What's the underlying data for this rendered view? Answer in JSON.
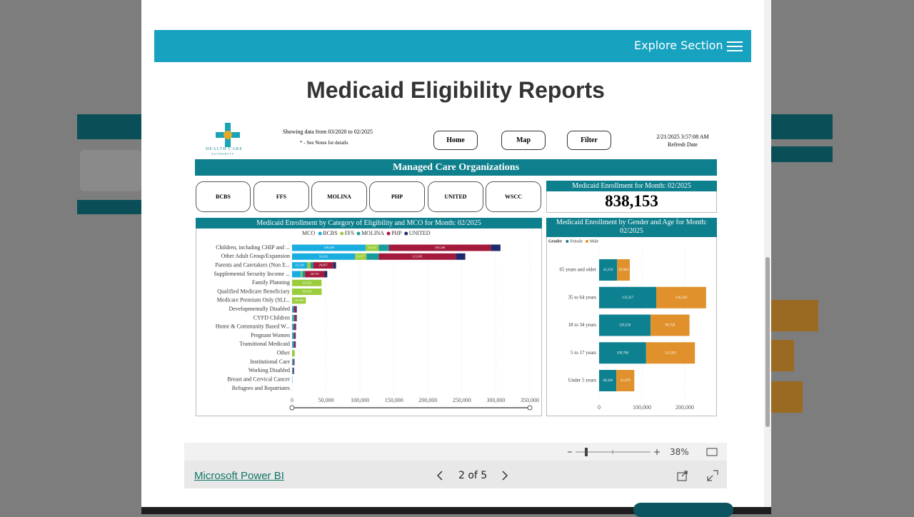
{
  "browser": {
    "explore": "Explore Section",
    "page_title": "Medicaid Eligibility Reports"
  },
  "report": {
    "logo_line1": "HEALTH CARE",
    "logo_line2": "AUTHORITY",
    "data_range": "Showing data from 03/2020 to 02/2025",
    "notes": "* - See Notes for details",
    "nav": [
      "Home",
      "Map",
      "Filter"
    ],
    "refresh_time": "2/21/2025 3:57:08 AM",
    "refresh_label": "Refresh Date",
    "section_title": "Managed Care Organizations",
    "mco_buttons": [
      "BCBS",
      "FFS",
      "MOLINA",
      "PHP",
      "UNITED",
      "WSCC"
    ],
    "kpi_title": "Medicaid Enrollment for Month: 02/2025",
    "kpi_value": "838,153"
  },
  "footer": {
    "zoom": "38%",
    "brand": "Microsoft Power BI",
    "page": "2 of 5"
  },
  "chart_data": [
    {
      "type": "bar",
      "orientation": "horizontal",
      "stacked": true,
      "title": "Medicaid Enrollment by Category of Eligibility and MCO for Month: 02/2025",
      "legend_title": "MCO",
      "categories": [
        "Children, including CHIP and ...",
        "Other Adult Group/Expansion",
        "Parents and Caretakers (Non E...",
        "Supplemental Security Income ...",
        "Family Planning",
        "Qualified Medicare Beneficiary",
        "Medicare Premium Only (SLI...",
        "Developmentally Disabled",
        "CYFD Children",
        "Home & Community Based W...",
        "Pregnant Women",
        "Transitional Medicaid",
        "Other",
        "Institutional Care",
        "Working Disabled",
        "Breast and Cervical Cancer",
        "Refugees and Repatriates"
      ],
      "series": [
        {
          "name": "BCBS",
          "color": "#1aaee0",
          "values": [
            108308,
            92631,
            22129,
            13000,
            null,
            null,
            null,
            1500,
            1500,
            1500,
            1500,
            1500,
            null,
            1000,
            1000,
            300,
            null
          ],
          "value_labels": [
            "108,308",
            "92,631",
            "22,129",
            null,
            null,
            null,
            null,
            null,
            null,
            null,
            null,
            null,
            null,
            null,
            null,
            null,
            null
          ]
        },
        {
          "name": "FFS",
          "color": "#9acd3c",
          "values": [
            19221,
            16877,
            5000,
            2000,
            43436,
            43626,
            20260,
            null,
            500,
            null,
            null,
            null,
            4000,
            null,
            null,
            null,
            null
          ],
          "value_labels": [
            "19,221",
            "16,877",
            null,
            null,
            "43,436",
            "43,626",
            "20,260",
            null,
            null,
            null,
            null,
            null,
            null,
            null,
            null,
            null,
            null
          ]
        },
        {
          "name": "MOLINA",
          "color": "#1a9c9c",
          "values": [
            15000,
            18000,
            4000,
            4000,
            null,
            null,
            null,
            1000,
            1500,
            1000,
            1000,
            1000,
            null,
            800,
            500,
            null,
            null
          ],
          "value_labels": [
            null,
            null,
            null,
            null,
            null,
            null,
            null,
            null,
            null,
            null,
            null,
            null,
            null,
            null,
            null,
            null,
            null
          ]
        },
        {
          "name": "PHP",
          "color": "#a31a3c",
          "values": [
            150246,
            113545,
            29607,
            28791,
            null,
            null,
            null,
            3000,
            2500,
            2500,
            2000,
            2000,
            null,
            1200,
            1000,
            null,
            null
          ],
          "value_labels": [
            "150,246",
            "113,545",
            "29,607",
            "28,791",
            null,
            null,
            null,
            null,
            null,
            null,
            null,
            null,
            null,
            null,
            null,
            null,
            null
          ]
        },
        {
          "name": "UNITED",
          "color": "#1f2a6e",
          "values": [
            14000,
            14000,
            4000,
            4000,
            null,
            null,
            null,
            1500,
            1000,
            1000,
            1000,
            1000,
            null,
            600,
            500,
            null,
            null
          ],
          "value_labels": [
            null,
            null,
            null,
            null,
            null,
            null,
            null,
            null,
            null,
            null,
            null,
            null,
            null,
            null,
            null,
            null,
            null
          ]
        }
      ],
      "xlim": [
        0,
        350000
      ],
      "xticks": [
        0,
        {
          "value": 50000,
          "label": "50,000"
        },
        {
          "value": 100000,
          "label": "100,000"
        },
        {
          "value": 150000,
          "label": "150,000"
        },
        {
          "value": 200000,
          "label": "200,000"
        },
        {
          "value": 250000,
          "label": "250,000"
        },
        {
          "value": 300000,
          "label": "300,000"
        },
        {
          "value": 350000,
          "label": "350,000"
        }
      ],
      "grid": true
    },
    {
      "type": "bar",
      "orientation": "horizontal",
      "stacked": true,
      "title": "Medicaid Enrollment by Gender and Age for Month: 02/2025",
      "legend_title": "Gender",
      "categories": [
        "65 years and older",
        "35 to 64 years",
        "18 to 34 years",
        "5 to 17 years",
        "Under 5 years"
      ],
      "series": [
        {
          "name": "Female",
          "color": "#0e8190",
          "values": [
            42110,
            133357,
            120258,
            109708,
            40246
          ],
          "value_labels": [
            "42,110",
            "133,357",
            "120,258",
            "109,708",
            "40,246"
          ]
        },
        {
          "name": "Male",
          "color": "#e0912b",
          "values": [
            29584,
            116339,
            90750,
            113925,
            41876
          ],
          "value_labels": [
            "29,584",
            "116,339",
            "90,750",
            "113,925",
            "41,876"
          ]
        }
      ],
      "xlim": [
        0,
        250000
      ],
      "xticks": [
        0,
        {
          "value": 100000,
          "label": "100,000"
        },
        {
          "value": 200000,
          "label": "200,000"
        }
      ],
      "grid": true
    }
  ]
}
